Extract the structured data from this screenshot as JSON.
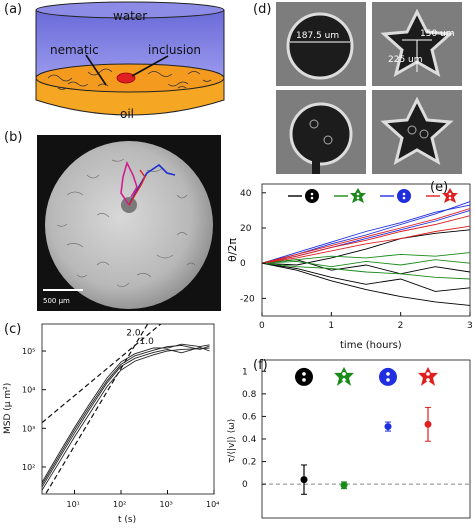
{
  "figure": {
    "panel_labels": {
      "a": "(a)",
      "b": "(b)",
      "c": "(c)",
      "d": "(d)",
      "e": "(e)",
      "f": "(f)"
    }
  },
  "panel_a": {
    "water_label": "water",
    "nematic_label": "nematic",
    "inclusion_label": "inclusion",
    "oil_label": "oil",
    "colors": {
      "water": "#7f7fe0",
      "oil": "#f5a623",
      "inclusion": "#e02020"
    }
  },
  "panel_b": {
    "scale_bar_label": "500 μm",
    "track_colors": [
      "#1a2fd0",
      "#d02090",
      "#e02020"
    ]
  },
  "panel_d": {
    "dim_circle": "187.5 um",
    "dim_star_inner": "150 um",
    "dim_star_outer": "225 um"
  },
  "chart_data": [
    {
      "id": "c",
      "type": "line",
      "xlabel": "t (s)",
      "ylabel": "MSD (μ m²)",
      "xscale": "log",
      "yscale": "log",
      "xlim": [
        2,
        10000
      ],
      "ylim": [
        20,
        500000
      ],
      "x_ticks": [
        "10¹",
        "10²",
        "10³",
        "10⁴"
      ],
      "y_ticks": [
        "10²",
        "10³",
        "10⁴",
        "10⁵"
      ],
      "annotations": [
        "2.0",
        "1.0"
      ],
      "series": [
        {
          "x": [
            2,
            5,
            10,
            20,
            50,
            100,
            200,
            500,
            1000,
            2000,
            5000,
            8000
          ],
          "y": [
            25,
            150,
            600,
            2200,
            12000,
            32000,
            55000,
            80000,
            100000,
            110000,
            115000,
            120000
          ]
        },
        {
          "x": [
            2,
            5,
            10,
            20,
            50,
            100,
            200,
            500,
            1000,
            2000,
            5000,
            8000
          ],
          "y": [
            30,
            190,
            750,
            2800,
            15000,
            40000,
            65000,
            92000,
            110000,
            90000,
            125000,
            100000
          ]
        },
        {
          "x": [
            2,
            5,
            10,
            20,
            50,
            100,
            200,
            500,
            1000,
            2000,
            5000,
            8000
          ],
          "y": [
            35,
            220,
            900,
            3300,
            17000,
            45000,
            75000,
            105000,
            130000,
            140000,
            110000,
            135000
          ]
        },
        {
          "x": [
            2,
            5,
            10,
            20,
            50,
            100,
            200,
            500,
            1000,
            2000,
            5000,
            8000
          ],
          "y": [
            40,
            260,
            1050,
            3900,
            20000,
            52000,
            85000,
            120000,
            120000,
            150000,
            130000,
            145000
          ]
        }
      ],
      "guides": [
        {
          "label": "2.0",
          "slope": 2,
          "x": [
            2,
            400
          ],
          "y": [
            14,
            570000
          ]
        },
        {
          "label": "1.0",
          "slope": 1,
          "x": [
            2,
            10000
          ],
          "y": [
            1400,
            7000000
          ]
        }
      ]
    },
    {
      "id": "e",
      "type": "line",
      "xlabel": "time (hours)",
      "ylabel": "θ/2π",
      "xlim": [
        0,
        3
      ],
      "ylim": [
        -30,
        45
      ],
      "x_ticks": [
        "0",
        "1",
        "2",
        "3"
      ],
      "y_ticks": [
        "-20",
        "0",
        "20",
        "40"
      ],
      "legend_position": "top",
      "series": [
        {
          "color": "#000000",
          "x": [
            0,
            0.5,
            1,
            1.5,
            2,
            2.5,
            3
          ],
          "y": [
            0,
            -3,
            -8,
            -12,
            -9,
            -16,
            -14
          ]
        },
        {
          "color": "#000000",
          "x": [
            0,
            0.5,
            1,
            1.5,
            2,
            2.5,
            3
          ],
          "y": [
            0,
            2,
            -4,
            -1,
            -6,
            -2,
            -5
          ]
        },
        {
          "color": "#000000",
          "x": [
            0,
            0.5,
            1,
            1.5,
            2,
            2.5,
            3
          ],
          "y": [
            0,
            -1,
            3,
            8,
            14,
            17,
            19
          ]
        },
        {
          "color": "#000000",
          "x": [
            0,
            0.5,
            1,
            1.5,
            2,
            2.5,
            3
          ],
          "y": [
            0,
            -4,
            -10,
            -15,
            -19,
            -22,
            -24
          ]
        },
        {
          "color": "#1a8a1a",
          "x": [
            0,
            0.5,
            1,
            1.5,
            2,
            2.5,
            3
          ],
          "y": [
            0,
            1,
            -2,
            1,
            -1,
            2,
            0
          ]
        },
        {
          "color": "#1a8a1a",
          "x": [
            0,
            0.5,
            1,
            1.5,
            2,
            2.5,
            3
          ],
          "y": [
            0,
            -2,
            -3,
            -5,
            -6,
            -8,
            -9
          ]
        },
        {
          "color": "#1a8a1a",
          "x": [
            0,
            0.5,
            1,
            1.5,
            2,
            2.5,
            3
          ],
          "y": [
            0,
            2,
            4,
            3,
            5,
            4,
            6
          ]
        },
        {
          "color": "#1f2fe0",
          "x": [
            0,
            0.5,
            1,
            1.5,
            2,
            2.5,
            3
          ],
          "y": [
            0,
            5,
            11,
            16,
            22,
            28,
            35
          ]
        },
        {
          "color": "#1f2fe0",
          "x": [
            0,
            0.5,
            1,
            1.5,
            2,
            2.5,
            3
          ],
          "y": [
            0,
            4,
            9,
            14,
            19,
            24,
            30
          ]
        },
        {
          "color": "#1f2fe0",
          "x": [
            0,
            0.5,
            1,
            1.5,
            2,
            2.5,
            3
          ],
          "y": [
            0,
            6,
            12,
            18,
            23,
            29,
            33
          ]
        },
        {
          "color": "#e02020",
          "x": [
            0,
            0.5,
            1,
            1.5,
            2,
            2.5,
            3
          ],
          "y": [
            0,
            4,
            9,
            13,
            18,
            22,
            27
          ]
        },
        {
          "color": "#e02020",
          "x": [
            0,
            0.5,
            1,
            1.5,
            2,
            2.5,
            3
          ],
          "y": [
            0,
            5,
            10,
            15,
            20,
            25,
            31
          ]
        },
        {
          "color": "#e02020",
          "x": [
            0,
            0.5,
            1,
            1.5,
            2,
            2.5,
            3
          ],
          "y": [
            0,
            3,
            7,
            11,
            14,
            18,
            21
          ]
        }
      ]
    },
    {
      "id": "f",
      "type": "scatter",
      "ylabel": "τ/⟨|v|⟩ ⟨ω⟩",
      "ylim": [
        -0.3,
        1.1
      ],
      "y_ticks": [
        "0",
        "0.2",
        "0.4",
        "0.6",
        "0.8",
        "1"
      ],
      "categories": [
        "circle",
        "star",
        "circle-with-tail",
        "star-with-tail"
      ],
      "series": [
        {
          "color": "#000000",
          "values": [
            0.04
          ],
          "err": [
            0.13
          ]
        },
        {
          "color": "#1a8a1a",
          "values": [
            -0.01
          ],
          "err": [
            0.03
          ]
        },
        {
          "color": "#1f2fe0",
          "values": [
            0.51
          ],
          "err": [
            0.04
          ]
        },
        {
          "color": "#e02020",
          "values": [
            0.53
          ],
          "err": [
            0.15
          ]
        }
      ]
    }
  ]
}
